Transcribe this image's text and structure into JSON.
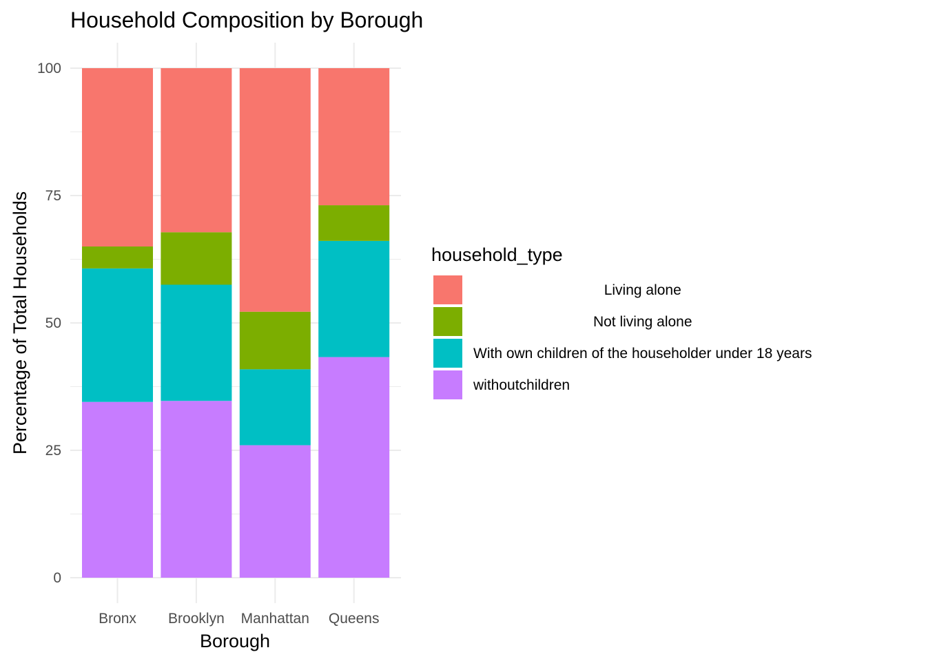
{
  "chart_data": {
    "type": "bar",
    "stacked": true,
    "title": "Household Composition by Borough",
    "xlabel": "Borough",
    "ylabel": "Percentage of Total Households",
    "ylim": [
      0,
      100
    ],
    "yticks": [
      0,
      25,
      50,
      75,
      100
    ],
    "grid": true,
    "categories": [
      "Bronx",
      "Brooklyn",
      "Manhattan",
      "Queens"
    ],
    "legend": {
      "title": "household_type",
      "position": "right"
    },
    "series": [
      {
        "name": "withoutchildren",
        "label": "withoutchildren",
        "color": "#C77CFF",
        "values": [
          34.5,
          34.7,
          26.0,
          43.3
        ]
      },
      {
        "name": "With own children of the householder under 18 years",
        "label": "With own children of the householder under 18 years",
        "color": "#00BFC4",
        "values": [
          26.2,
          22.8,
          14.9,
          22.8
        ]
      },
      {
        "name": "Not living alone",
        "label": "Not living alone",
        "color": "#7CAE00",
        "values": [
          4.3,
          10.3,
          11.3,
          7.0
        ]
      },
      {
        "name": "Living alone",
        "label": "Living alone",
        "color": "#F8766D",
        "values": [
          35.0,
          32.2,
          47.8,
          26.9
        ]
      }
    ],
    "legend_order": [
      "Living alone",
      "Not living alone",
      "With own children of the householder under 18 years",
      "withoutchildren"
    ]
  }
}
